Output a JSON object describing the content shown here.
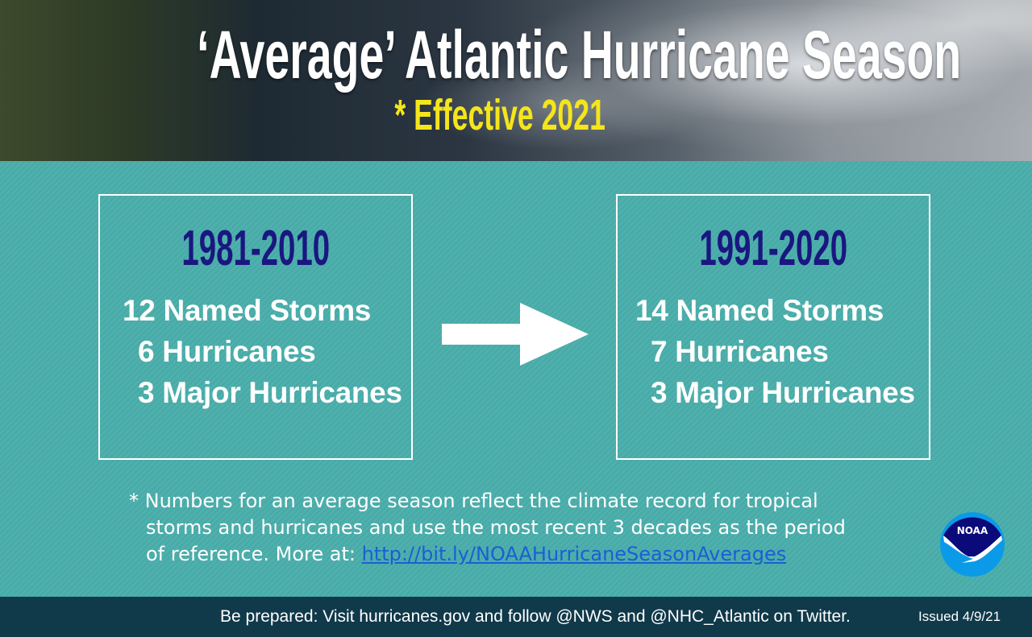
{
  "header": {
    "title": "‘Average’ Atlantic Hurricane Season",
    "subtitle": "* Effective 2021"
  },
  "old": {
    "period": "1981-2010",
    "named_storms": "12 Named Storms",
    "hurricanes": "6 Hurricanes",
    "major": "3 Major Hurricanes"
  },
  "new": {
    "period": "1991-2020",
    "named_storms": "14 Named Storms",
    "hurricanes": "7 Hurricanes",
    "major": "3 Major Hurricanes"
  },
  "note": {
    "line1": "* Numbers for an average season reflect the climate record for tropical",
    "line2": "storms and hurricanes and use the most recent 3 decades as the period",
    "line3": "of reference. More at: ",
    "link": "http://bit.ly/NOAAHurricaneSeasonAverages"
  },
  "logo": {
    "text": "NOAA"
  },
  "footer": {
    "text": "Be prepared: Visit hurricanes.gov and follow @NWS and @NHC_Atlantic on Twitter.",
    "issued": "Issued 4/9/21"
  },
  "colors": {
    "background": "#4aaeab",
    "period": "#1a1780",
    "subtitle": "#f5e51b",
    "footer": "#10394a"
  }
}
